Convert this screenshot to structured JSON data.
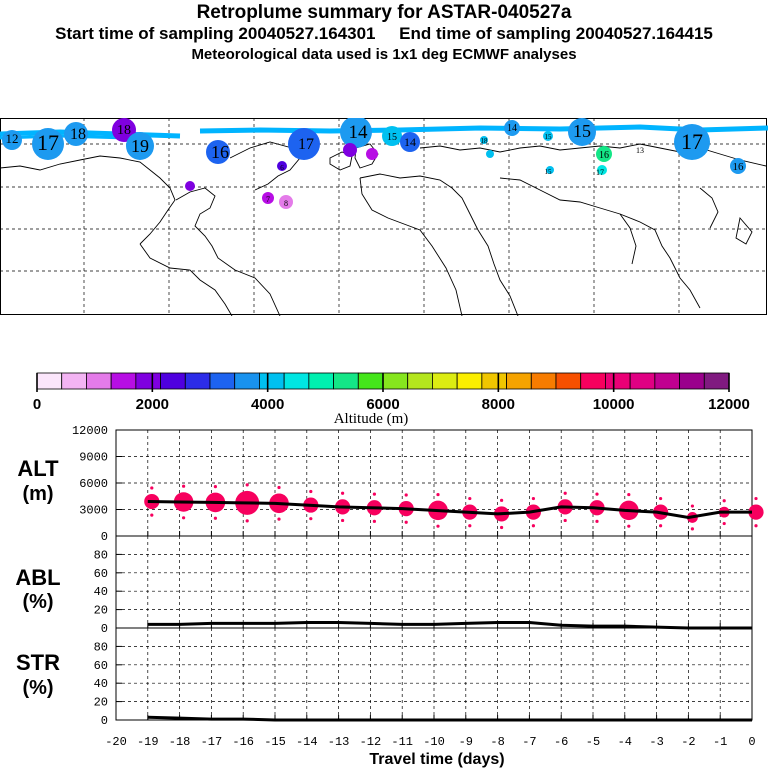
{
  "header": {
    "title": "Retroplume summary for ASTAR-040527a",
    "start_label": "Start time of sampling",
    "start_value": "20040527.164301",
    "end_label": "End time of sampling",
    "end_value": "20040527.164415",
    "met_line": "Meteorological data used is 1x1 deg ECMWF analyses"
  },
  "map": {
    "plume_labels": [
      "12",
      "17",
      "18",
      "18",
      "19",
      "16",
      "17",
      "14",
      "15",
      "14",
      "15",
      "16",
      "17",
      "16",
      "13",
      "18",
      "15",
      "14",
      "17",
      "15",
      "7",
      "8",
      "6"
    ]
  },
  "colorbar": {
    "colors": [
      "#fbe6fb",
      "#f3b4f3",
      "#e47be9",
      "#b70ee4",
      "#7f00e0",
      "#4f00df",
      "#2c2ce8",
      "#1d63f0",
      "#1992ee",
      "#00c0f0",
      "#00e6e2",
      "#00f0b0",
      "#14e687",
      "#44e61a",
      "#86e61e",
      "#b4e61e",
      "#dcec12",
      "#fbee00",
      "#f0c600",
      "#f5a300",
      "#f77c00",
      "#f75000",
      "#f7005e",
      "#ea0076",
      "#e00083",
      "#c00090",
      "#9a008c",
      "#801a80"
    ],
    "tick_values": [
      "0",
      "2000",
      "4000",
      "6000",
      "8000",
      "10000",
      "12000"
    ],
    "label": "Altitude (m)"
  },
  "chart_data": [
    {
      "type": "line",
      "panel": "ALT",
      "ylabel_main": "ALT",
      "ylabel_unit": "(m)",
      "ylim": [
        0,
        12000
      ],
      "yticks": [
        "12000",
        "9000",
        "6000",
        "3000",
        "0"
      ],
      "x": [
        -19,
        -18,
        -17,
        -16,
        -15,
        -14,
        -13,
        -12,
        -11,
        -10,
        -9,
        -8,
        -7,
        -6,
        -5,
        -4,
        -3,
        -2,
        -1,
        0
      ],
      "values": [
        3900,
        3850,
        3800,
        3750,
        3700,
        3500,
        3300,
        3200,
        3100,
        2900,
        2700,
        2500,
        2700,
        3300,
        3200,
        2900,
        2700,
        2100,
        2700,
        2700
      ],
      "bubble_size": [
        3,
        4,
        4,
        5,
        4,
        3,
        3,
        3,
        3,
        4,
        3,
        3,
        3,
        3,
        3,
        4,
        3,
        2,
        2,
        3
      ],
      "bubble_color": "#f7005e"
    },
    {
      "type": "line",
      "panel": "ABL",
      "ylabel_main": "ABL",
      "ylabel_unit": "(%)",
      "ylim": [
        0,
        100
      ],
      "yticks": [
        "80",
        "60",
        "40",
        "20",
        "0"
      ],
      "x": [
        -19,
        -18,
        -17,
        -16,
        -15,
        -14,
        -13,
        -12,
        -11,
        -10,
        -9,
        -8,
        -7,
        -6,
        -5,
        -4,
        -3,
        -2,
        -1,
        0
      ],
      "values": [
        4,
        4,
        5,
        5,
        5,
        6,
        6,
        5,
        4,
        4,
        5,
        6,
        6,
        3,
        2,
        2,
        1,
        0,
        0,
        0
      ]
    },
    {
      "type": "line",
      "panel": "STR",
      "ylabel_main": "STR",
      "ylabel_unit": "(%)",
      "ylim": [
        0,
        100
      ],
      "yticks": [
        "80",
        "60",
        "40",
        "20",
        "0"
      ],
      "x": [
        -19,
        -18,
        -17,
        -16,
        -15,
        -14,
        -13,
        -12,
        -11,
        -10,
        -9,
        -8,
        -7,
        -6,
        -5,
        -4,
        -3,
        -2,
        -1,
        0
      ],
      "values": [
        3,
        2,
        1,
        1,
        0,
        0,
        0,
        0,
        0,
        0,
        0,
        0,
        0,
        0,
        0,
        0,
        0,
        0,
        0,
        0
      ]
    }
  ],
  "xaxis": {
    "ticks": [
      "-20",
      "-19",
      "-18",
      "-17",
      "-16",
      "-15",
      "-14",
      "-13",
      "-12",
      "-11",
      "-10",
      "-9",
      "-8",
      "-7",
      "-6",
      "-5",
      "-4",
      "-3",
      "-2",
      "-1",
      "0"
    ],
    "label": "Travel time (days)"
  }
}
